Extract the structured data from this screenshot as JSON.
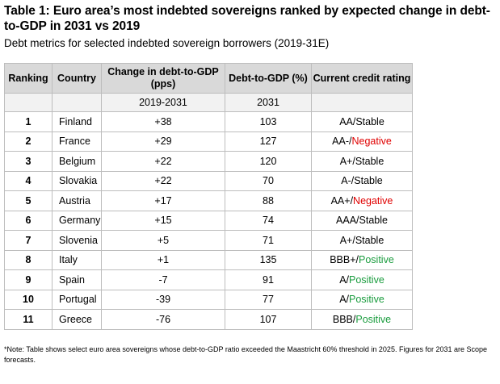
{
  "title": "Table 1: Euro area’s most indebted sovereigns ranked by expected change in debt-to-GDP in 2031 vs 2019",
  "subtitle": "Debt metrics for selected indebted sovereign borrowers (2019-31E)",
  "columns": {
    "ranking": "Ranking",
    "country": "Country",
    "change": "Change in debt-to-GDP (pps)",
    "debt": "Debt-to-GDP (%)",
    "rating": "Current credit rating"
  },
  "subheader": {
    "change_period": "2019-2031",
    "debt_year": "2031"
  },
  "rows": [
    {
      "rank": "1",
      "country": "Finland",
      "change": "+38",
      "debt": "103",
      "rating_base": "AA/",
      "outlook": "Stable",
      "outlook_type": "stable"
    },
    {
      "rank": "2",
      "country": "France",
      "change": "+29",
      "debt": "127",
      "rating_base": "AA-/",
      "outlook": "Negative",
      "outlook_type": "negative"
    },
    {
      "rank": "3",
      "country": "Belgium",
      "change": "+22",
      "debt": "120",
      "rating_base": "A+/",
      "outlook": "Stable",
      "outlook_type": "stable"
    },
    {
      "rank": "4",
      "country": "Slovakia",
      "change": "+22",
      "debt": "70",
      "rating_base": "A-/",
      "outlook": "Stable",
      "outlook_type": "stable"
    },
    {
      "rank": "5",
      "country": "Austria",
      "change": "+17",
      "debt": "88",
      "rating_base": "AA+/",
      "outlook": "Negative",
      "outlook_type": "negative"
    },
    {
      "rank": "6",
      "country": "Germany",
      "change": "+15",
      "debt": "74",
      "rating_base": "AAA/",
      "outlook": "Stable",
      "outlook_type": "stable"
    },
    {
      "rank": "7",
      "country": "Slovenia",
      "change": "+5",
      "debt": "71",
      "rating_base": "A+/",
      "outlook": "Stable",
      "outlook_type": "stable"
    },
    {
      "rank": "8",
      "country": "Italy",
      "change": "+1",
      "debt": "135",
      "rating_base": "BBB+/",
      "outlook": "Positive",
      "outlook_type": "positive"
    },
    {
      "rank": "9",
      "country": "Spain",
      "change": "-7",
      "debt": "91",
      "rating_base": "A/",
      "outlook": "Positive",
      "outlook_type": "positive"
    },
    {
      "rank": "10",
      "country": "Portugal",
      "change": "-39",
      "debt": "77",
      "rating_base": "A/",
      "outlook": "Positive",
      "outlook_type": "positive"
    },
    {
      "rank": "11",
      "country": "Greece",
      "change": "-76",
      "debt": "107",
      "rating_base": "BBB/",
      "outlook": "Positive",
      "outlook_type": "positive"
    }
  ],
  "colors": {
    "negative": "#e00000",
    "positive": "#1a9c3e",
    "header_bg": "#d9d9d9",
    "subheader_bg": "#f2f2f2"
  },
  "note": "*Note: Table shows select euro area sovereigns whose debt-to-GDP ratio exceeded the Maastricht 60% threshold in 2025. Figures for 2031 are Scope forecasts."
}
